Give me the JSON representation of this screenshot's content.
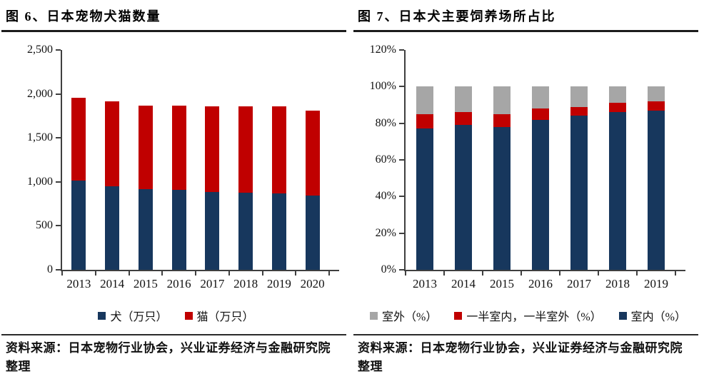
{
  "footer": {
    "source_text": "资料来源：日本宠物行业协会，兴业证券经济与金融研究院整理"
  },
  "chart_data": [
    {
      "type": "bar",
      "stacked": true,
      "title": "图 6、日本宠物犬猫数量",
      "xlabel": "",
      "ylabel": "",
      "categories": [
        "2013",
        "2014",
        "2015",
        "2016",
        "2017",
        "2018",
        "2019",
        "2020"
      ],
      "series": [
        {
          "name": "犬（万只）",
          "color": "#17375D",
          "values": [
            1015,
            950,
            920,
            910,
            885,
            875,
            865,
            845
          ]
        },
        {
          "name": "猫（万只）",
          "color": "#C00000",
          "values": [
            945,
            965,
            950,
            955,
            970,
            985,
            990,
            965
          ]
        }
      ],
      "ylim": [
        0,
        2500
      ],
      "ytick_step": 500,
      "ytick_labels": [
        "0",
        "500",
        "1,000",
        "1,500",
        "2,000",
        "2,500"
      ],
      "grid": false,
      "legend_position": "bottom",
      "legend": [
        {
          "label": "犬（万只）",
          "color": "#17375D"
        },
        {
          "label": "猫（万只）",
          "color": "#C00000"
        }
      ]
    },
    {
      "type": "bar",
      "stacked": true,
      "title": "图 7、日本犬主要饲养场所占比",
      "xlabel": "",
      "ylabel": "",
      "categories": [
        "2013",
        "2014",
        "2015",
        "2016",
        "2017",
        "2018",
        "2019"
      ],
      "series": [
        {
          "name": "室内（%）",
          "color": "#17375D",
          "values": [
            77,
            79,
            78,
            82,
            84,
            86,
            87
          ]
        },
        {
          "name": "一半室内，一半室外（%）",
          "color": "#C00000",
          "values": [
            8,
            7,
            7,
            6,
            5,
            5,
            5
          ]
        },
        {
          "name": "室外（%）",
          "color": "#A6A6A6",
          "values": [
            15,
            14,
            15,
            12,
            11,
            9,
            8
          ]
        }
      ],
      "ylim": [
        0,
        120
      ],
      "ytick_step": 20,
      "ytick_labels": [
        "0%",
        "20%",
        "40%",
        "60%",
        "80%",
        "100%",
        "120%"
      ],
      "grid": false,
      "legend_position": "bottom",
      "legend": [
        {
          "label": "室外（%）",
          "color": "#A6A6A6"
        },
        {
          "label": "一半室内，一半室外（%）",
          "color": "#C00000"
        },
        {
          "label": "室内（%）",
          "color": "#17375D"
        }
      ]
    }
  ]
}
